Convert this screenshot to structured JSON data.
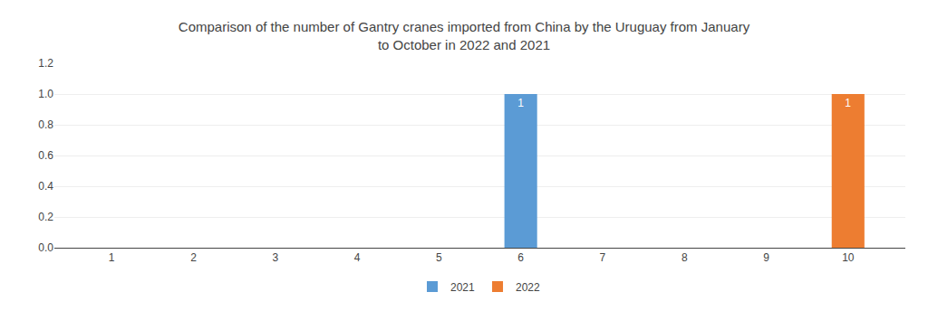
{
  "chart_data": {
    "type": "bar",
    "title": "Comparison of the number of Gantry cranes imported from China by the Uruguay from January\nto October in 2022 and 2021",
    "x": [
      1,
      2,
      3,
      4,
      5,
      6,
      7,
      8,
      9,
      10
    ],
    "series": [
      {
        "name": "2021",
        "color": "#5B9BD5",
        "values": [
          0,
          0,
          0,
          0,
          0,
          1,
          0,
          0,
          0,
          0
        ],
        "value_labels": [
          null,
          null,
          null,
          null,
          null,
          "1",
          null,
          null,
          null,
          null
        ]
      },
      {
        "name": "2022",
        "color": "#ED7D31",
        "values": [
          0,
          0,
          0,
          0,
          0,
          0,
          0,
          0,
          0,
          1
        ],
        "value_labels": [
          null,
          null,
          null,
          null,
          null,
          null,
          null,
          null,
          null,
          "1"
        ]
      }
    ],
    "xlim": [
      0.3,
      10.7
    ],
    "xticks": [
      1,
      2,
      3,
      4,
      5,
      6,
      7,
      8,
      9,
      10
    ],
    "ylim": [
      0,
      1.2
    ],
    "yticks": [
      {
        "value": 0,
        "label": "0.0"
      },
      0.2,
      0.4,
      0.6,
      0.8,
      {
        "value": 1,
        "label": "1.0"
      },
      1.2
    ],
    "grid": true,
    "legend": "bottom",
    "data_labels": true
  }
}
